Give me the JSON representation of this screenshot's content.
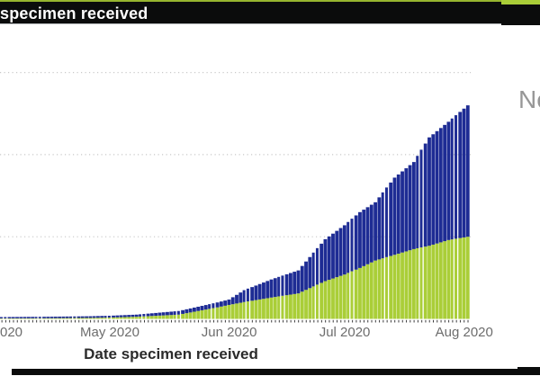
{
  "header": {
    "title": "specimen received",
    "bar_color": "#0b0c0c",
    "accent_color": "#aace38"
  },
  "legend": {
    "label": "Ne",
    "color": "#979797"
  },
  "x_axis": {
    "title": "Date specimen received",
    "ticks": [
      {
        "date": "2020-04-01",
        "label": "020",
        "clipped": true
      },
      {
        "date": "2020-05-01",
        "label": "May 2020"
      },
      {
        "date": "2020-06-01",
        "label": "Jun 2020"
      },
      {
        "date": "2020-07-01",
        "label": "Jul 2020"
      },
      {
        "date": "2020-08-01",
        "label": "Aug 2020"
      }
    ]
  },
  "chart_data": {
    "type": "bar",
    "subtype": "stacked-cumulative-daily-bars",
    "title": "",
    "xlabel": "Date specimen received",
    "ylabel": "",
    "y_axis_labels_visible": false,
    "y_unit": "gridline-interval (1.0 = one dotted gridline spacing; numeric y labels cropped out of image)",
    "y_gridlines_units": [
      1,
      2,
      3
    ],
    "ylim": [
      0,
      3.3
    ],
    "grid": "dotted-horizontal",
    "x_start_date": "2020-04-03",
    "x_end_date": "2020-08-02",
    "series": [
      {
        "name": "bottom-series-green",
        "color": "#aace38",
        "stack_order": 1
      },
      {
        "name": "top-series-blue",
        "color": "#1e2c94",
        "stack_order": 2
      }
    ],
    "keypoints": [
      {
        "date": "2020-04-03",
        "green": 0.006,
        "total": 0.022
      },
      {
        "date": "2020-04-15",
        "green": 0.008,
        "total": 0.026
      },
      {
        "date": "2020-04-26",
        "green": 0.012,
        "total": 0.032
      },
      {
        "date": "2020-05-01",
        "green": 0.016,
        "total": 0.038
      },
      {
        "date": "2020-05-08",
        "green": 0.026,
        "total": 0.052
      },
      {
        "date": "2020-05-19",
        "green": 0.052,
        "total": 0.096
      },
      {
        "date": "2020-05-29",
        "green": 0.14,
        "total": 0.2
      },
      {
        "date": "2020-06-01",
        "green": 0.17,
        "total": 0.235
      },
      {
        "date": "2020-06-05",
        "green": 0.205,
        "total": 0.35
      },
      {
        "date": "2020-06-12",
        "green": 0.26,
        "total": 0.48
      },
      {
        "date": "2020-06-19",
        "green": 0.31,
        "total": 0.59
      },
      {
        "date": "2020-06-26",
        "green": 0.46,
        "total": 0.97
      },
      {
        "date": "2020-07-01",
        "green": 0.54,
        "total": 1.14
      },
      {
        "date": "2020-07-05",
        "green": 0.62,
        "total": 1.3
      },
      {
        "date": "2020-07-09",
        "green": 0.71,
        "total": 1.42
      },
      {
        "date": "2020-07-14",
        "green": 0.78,
        "total": 1.72
      },
      {
        "date": "2020-07-19",
        "green": 0.85,
        "total": 1.91
      },
      {
        "date": "2020-07-23",
        "green": 0.89,
        "total": 2.21
      },
      {
        "date": "2020-07-28",
        "green": 0.96,
        "total": 2.4
      },
      {
        "date": "2020-08-02",
        "green": 1.0,
        "total": 2.6
      }
    ],
    "colors": {
      "gridline": "#c9c9c9",
      "tick": "#3c3c3c",
      "blue": "#1e2c94",
      "green": "#aace38"
    }
  }
}
